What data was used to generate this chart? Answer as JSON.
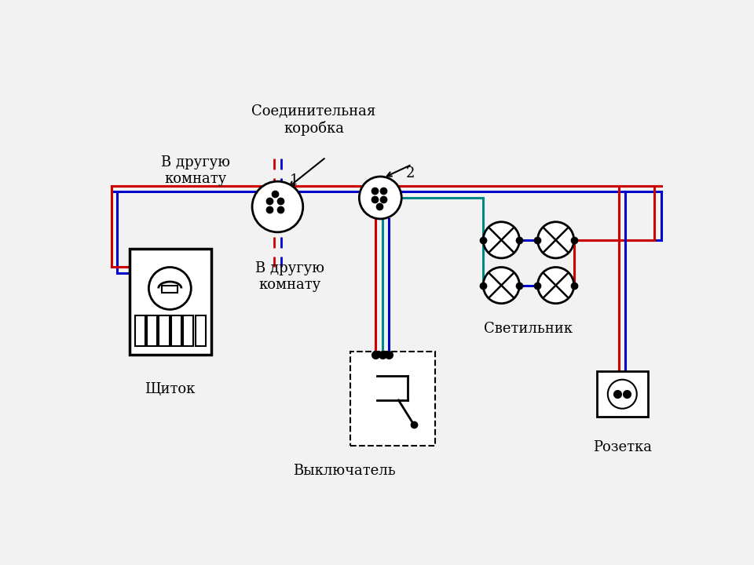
{
  "bg_color": "#f2f2f2",
  "colors": {
    "red": "#cc0000",
    "blue": "#0000cc",
    "green": "#008888",
    "black": "#000000"
  },
  "labels": {
    "junction_box": "Соединительная\nкоробка",
    "to_room1": "В другую\nкомнату",
    "to_room2": "В другую\nкомнату",
    "shield": "Щиток",
    "switch": "Выключатель",
    "lamp": "Светильник",
    "socket": "Розетка",
    "box1": "1",
    "box2": "2"
  },
  "font_size": 13
}
